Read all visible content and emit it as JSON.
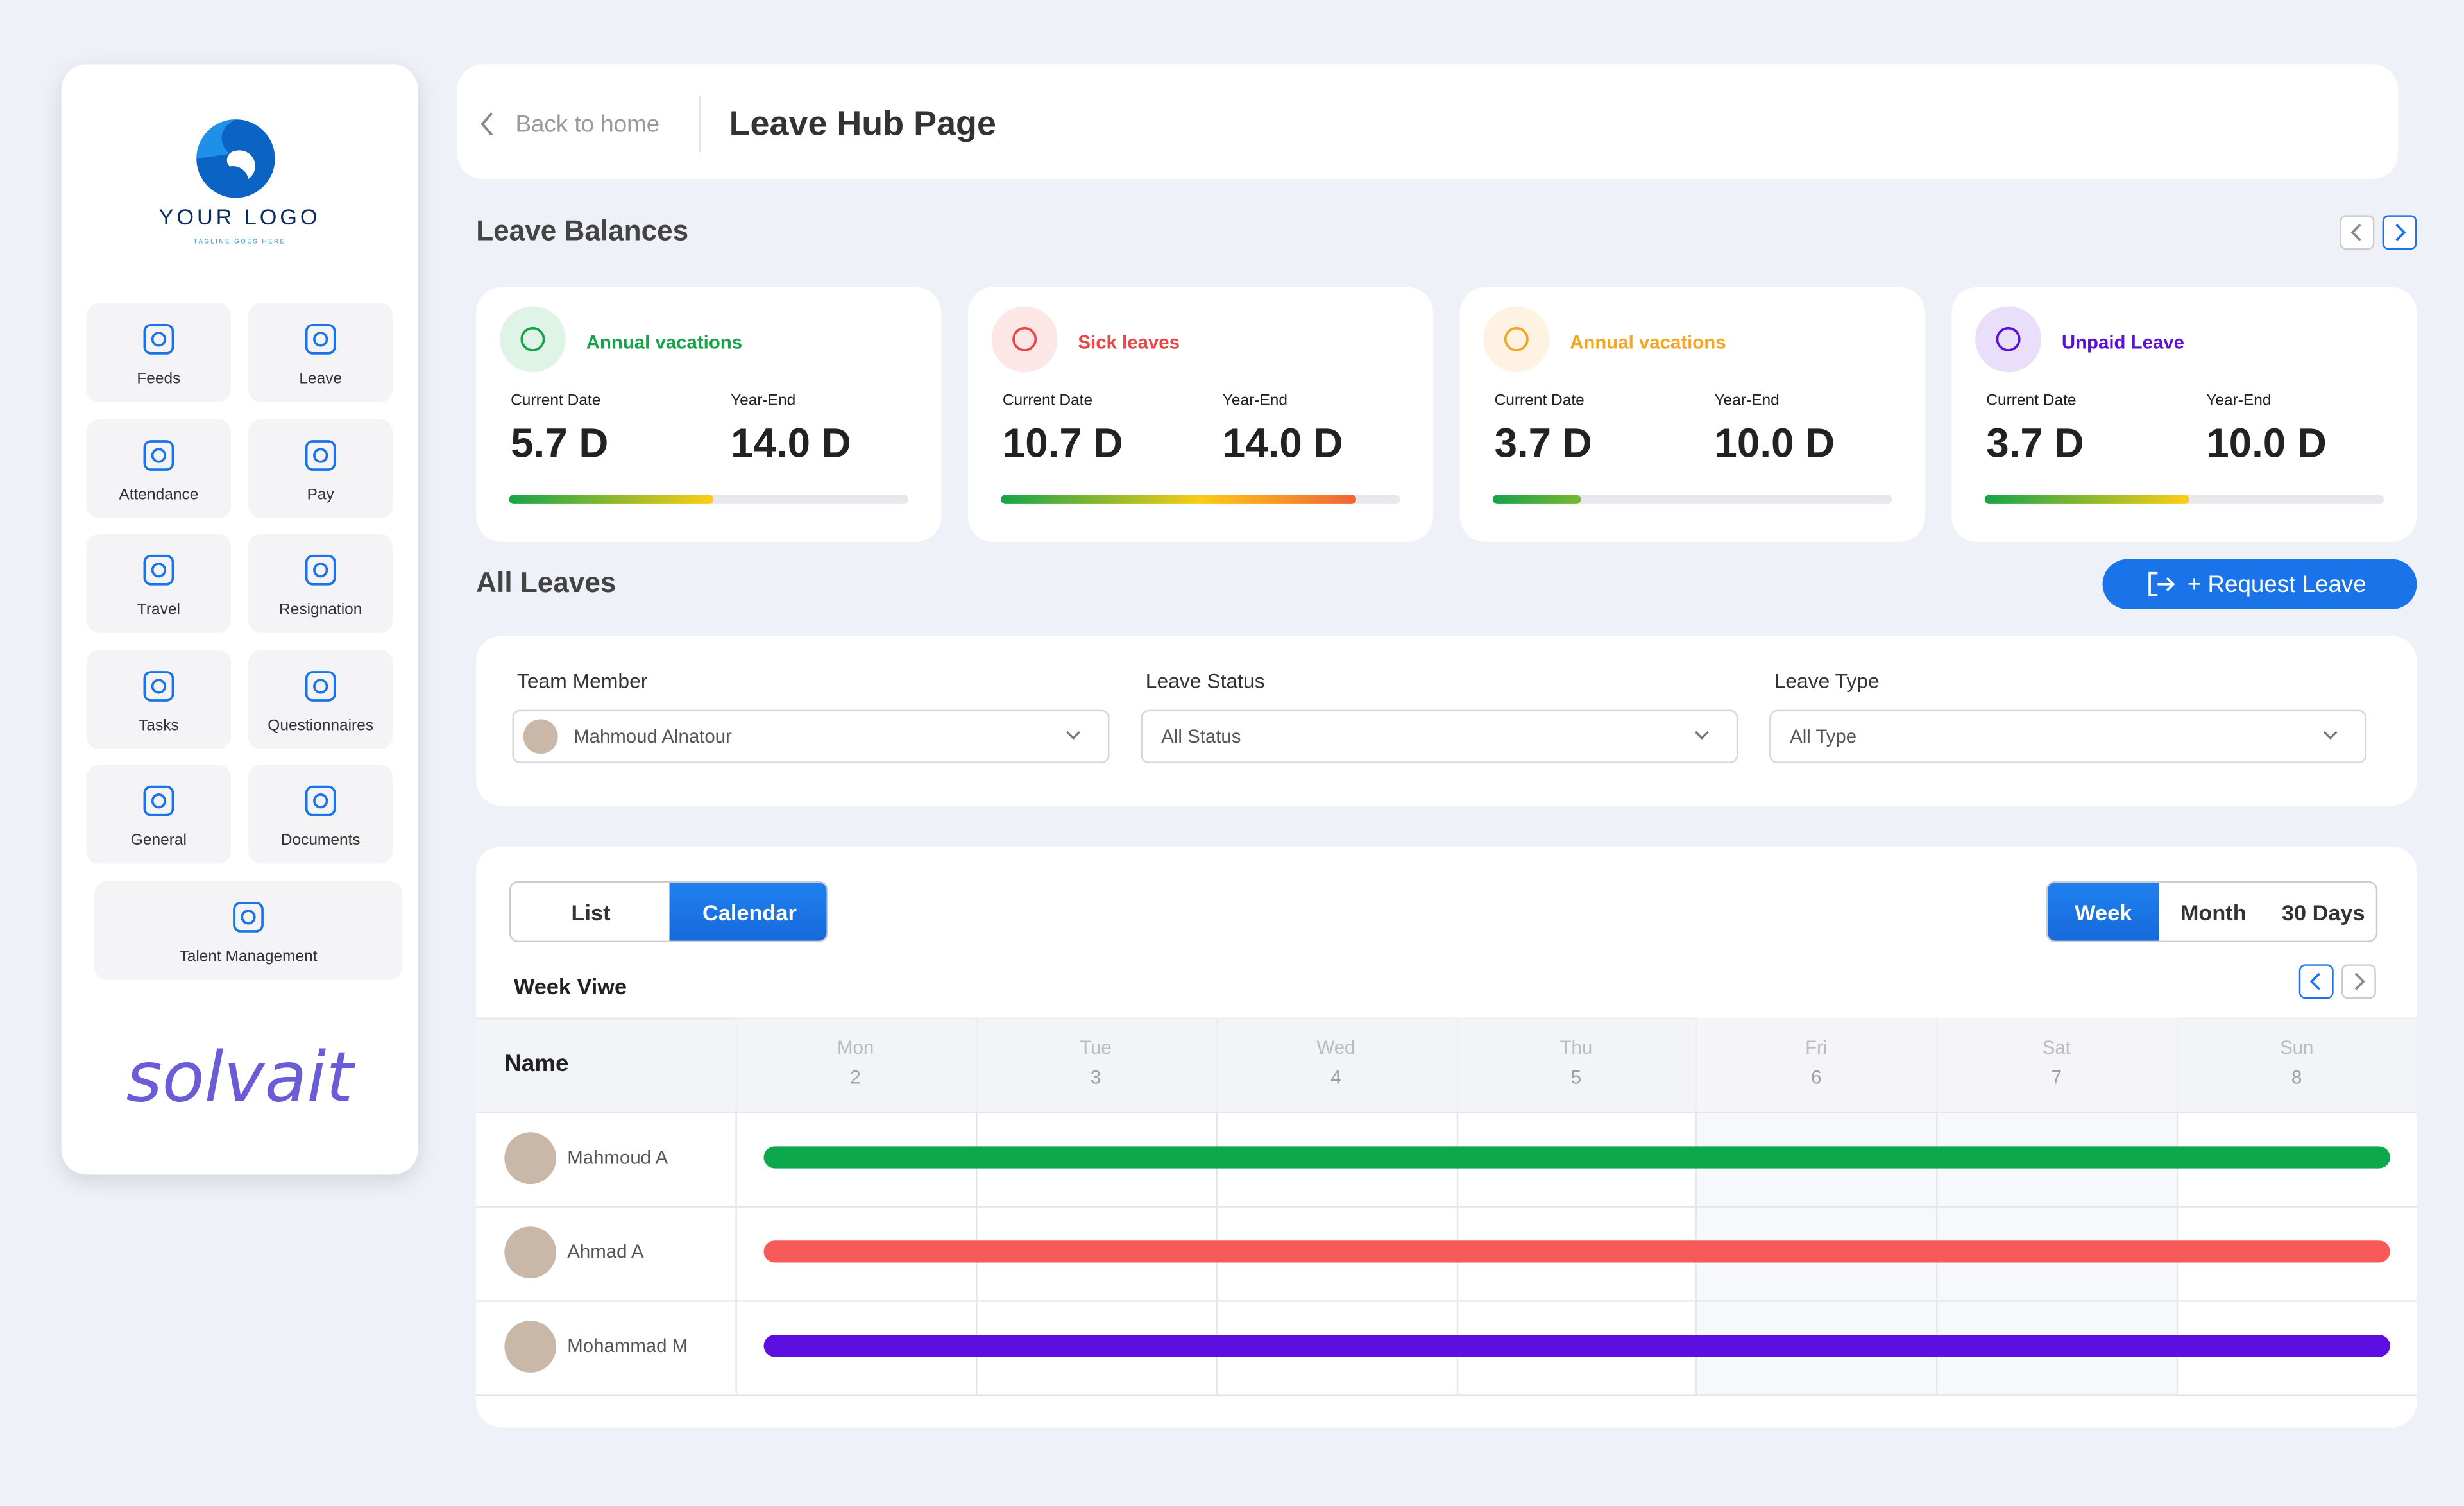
{
  "sidebar": {
    "logo": {
      "text": "YOUR LOGO",
      "tagline": "TAGLINE GOES HERE"
    },
    "nav": [
      "Feeds",
      "Leave",
      "Attendance",
      "Pay",
      "Travel",
      "Resignation",
      "Tasks",
      "Questionnaires",
      "General",
      "Documents",
      "Talent Management"
    ],
    "brand": "solvait"
  },
  "header": {
    "back": "Back to home",
    "title": "Leave Hub Page"
  },
  "balances": {
    "title": "Leave Balances",
    "cards": [
      {
        "name": "Annual vacations",
        "color": "#16a34a",
        "current_label": "Current Date",
        "current": "5.7 D",
        "end_label": "Year-End",
        "end": "14.0 D",
        "progress": 51
      },
      {
        "name": "Sick leaves",
        "color": "#ef4444",
        "current_label": "Current Date",
        "current": "10.7 D",
        "end_label": "Year-End",
        "end": "14.0 D",
        "progress": 89
      },
      {
        "name": "Annual vacations",
        "color": "#f5a524",
        "current_label": "Current Date",
        "current": "3.7 D",
        "end_label": "Year-End",
        "end": "10.0 D",
        "progress": 22
      },
      {
        "name": "Unpaid Leave",
        "color": "#5b12d6",
        "current_label": "Current Date",
        "current": "3.7 D",
        "end_label": "Year-End",
        "end": "10.0 D",
        "progress": 51
      }
    ]
  },
  "leaves": {
    "title": "All Leaves",
    "request": "+ Request Leave",
    "filters": [
      {
        "label": "Team Member",
        "value": "Mahmoud Alnatour"
      },
      {
        "label": "Leave Status",
        "value": "All Status"
      },
      {
        "label": "Leave Type",
        "value": "All Type"
      }
    ]
  },
  "calendar": {
    "views": [
      "List",
      "Calendar"
    ],
    "active_view": 1,
    "ranges": [
      "Week",
      "Month",
      "30 Days"
    ],
    "active_range": 0,
    "subtitle": "Week Viwe",
    "name_header": "Name",
    "days": [
      {
        "day": "Mon",
        "date": 2
      },
      {
        "day": "Tue",
        "date": 3
      },
      {
        "day": "Wed",
        "date": 4
      },
      {
        "day": "Thu",
        "date": 5
      },
      {
        "day": "Fri",
        "date": 6
      },
      {
        "day": "Sat",
        "date": 7
      },
      {
        "day": "Sun",
        "date": 8
      }
    ],
    "rows": [
      {
        "name": "Mahmoud A",
        "color": "#0ea84c"
      },
      {
        "name": "Ahmad A",
        "color": "#f85a5a"
      },
      {
        "name": "Mohammad M",
        "color": "#5b0fe0"
      }
    ]
  }
}
